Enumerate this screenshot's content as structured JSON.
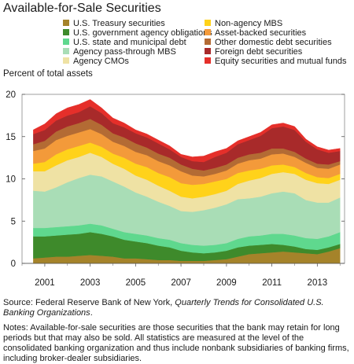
{
  "title": "Available-for-Sale Securities",
  "ylabel": "Percent of total assets",
  "legend_items": [
    {
      "label": "U.S. Treasury securities",
      "color": "#a5832a"
    },
    {
      "label": "U.S. government agency obligations",
      "color": "#3e8a2b"
    },
    {
      "label": "U.S. state and municipal debt",
      "color": "#5fd88e"
    },
    {
      "label": "Agency pass-through MBS",
      "color": "#a9ddb6"
    },
    {
      "label": "Agency CMOs",
      "color": "#efe2a4"
    },
    {
      "label": "Non-agency MBS",
      "color": "#ffd21a"
    },
    {
      "label": "Asset-backed securities",
      "color": "#f39a3a"
    },
    {
      "label": "Other domestic debt securities",
      "color": "#b36b34"
    },
    {
      "label": "Foreign debt securities",
      "color": "#a82a2a"
    },
    {
      "label": "Equity securities and mutual funds",
      "color": "#e52f2a"
    }
  ],
  "source": {
    "prefix": "Source: Federal Reserve Bank of New York, ",
    "italic": "Quarterly Trends for Consolidated U.S. Banking Organizations",
    "suffix": "."
  },
  "notes": "Notes: Available-for-sale securities are those securities that the bank may retain for long periods but that may also be sold. All statistics are measured at the level of the consolidated banking organization and thus include nonbank subsidiaries of banking firms, including broker-dealer subsidiaries.",
  "chart_data": {
    "type": "area",
    "stacked": true,
    "x": [
      2000.5,
      2001.0,
      2001.5,
      2002.0,
      2002.5,
      2003.0,
      2003.5,
      2004.0,
      2004.5,
      2005.0,
      2005.5,
      2006.0,
      2006.5,
      2007.0,
      2007.5,
      2008.0,
      2008.5,
      2009.0,
      2009.5,
      2010.0,
      2010.5,
      2011.0,
      2011.5,
      2012.0,
      2012.5,
      2013.0,
      2013.5,
      2014.0
    ],
    "xticks": [
      "2001",
      "2003",
      "2005",
      "2007",
      "2009",
      "2011",
      "2013"
    ],
    "xtick_values": [
      2001,
      2003,
      2005,
      2007,
      2009,
      2011,
      2013
    ],
    "xlim": [
      2000,
      2014.2
    ],
    "ylim": [
      0,
      20
    ],
    "yticks": [
      0,
      5,
      10,
      15,
      20
    ],
    "series": [
      {
        "name": "U.S. Treasury securities",
        "values": [
          0.6,
          0.7,
          0.8,
          0.8,
          0.9,
          1.0,
          0.9,
          0.8,
          0.6,
          0.6,
          0.5,
          0.4,
          0.4,
          0.3,
          0.3,
          0.3,
          0.4,
          0.5,
          0.8,
          1.1,
          1.2,
          1.3,
          1.4,
          1.3,
          1.2,
          1.1,
          1.4,
          1.8
        ]
      },
      {
        "name": "U.S. government agency obligations",
        "values": [
          2.6,
          2.5,
          2.5,
          2.6,
          2.6,
          2.7,
          2.6,
          2.4,
          2.2,
          2.0,
          1.9,
          1.7,
          1.5,
          1.2,
          1.0,
          0.9,
          0.9,
          1.0,
          1.1,
          1.0,
          1.0,
          1.0,
          0.8,
          0.7,
          0.5,
          0.5,
          0.5,
          0.5
        ]
      },
      {
        "name": "U.S. state and municipal debt",
        "values": [
          1.0,
          1.0,
          1.0,
          1.0,
          1.0,
          1.0,
          1.0,
          0.9,
          0.9,
          0.9,
          0.9,
          0.9,
          0.9,
          0.9,
          0.9,
          0.9,
          0.9,
          0.9,
          1.0,
          1.1,
          1.1,
          1.2,
          1.3,
          1.3,
          1.3,
          1.3,
          1.3,
          1.4
        ]
      },
      {
        "name": "Agency pass-through MBS",
        "values": [
          4.4,
          4.3,
          4.7,
          5.2,
          5.6,
          5.8,
          5.8,
          5.6,
          5.4,
          4.9,
          4.6,
          4.3,
          4.0,
          3.8,
          3.9,
          4.2,
          4.4,
          4.6,
          4.7,
          4.5,
          4.6,
          4.8,
          5.0,
          5.0,
          4.5,
          4.3,
          4.0,
          4.1
        ]
      },
      {
        "name": "Agency CMOs",
        "values": [
          2.3,
          2.4,
          2.6,
          2.6,
          2.5,
          2.6,
          2.3,
          2.1,
          2.1,
          2.0,
          2.0,
          1.9,
          1.8,
          1.7,
          1.6,
          1.6,
          1.6,
          1.6,
          1.8,
          2.1,
          2.2,
          2.3,
          2.3,
          2.3,
          2.4,
          2.3,
          2.2,
          2.1
        ]
      },
      {
        "name": "Non-agency MBS",
        "values": [
          0.9,
          1.1,
          1.3,
          1.3,
          1.3,
          1.2,
          1.2,
          1.2,
          1.3,
          1.4,
          1.5,
          1.5,
          1.6,
          1.6,
          1.6,
          1.5,
          1.5,
          1.4,
          1.3,
          1.2,
          1.1,
          1.0,
          0.9,
          0.8,
          0.8,
          0.7,
          0.7,
          0.7
        ]
      },
      {
        "name": "Asset-backed securities",
        "values": [
          1.5,
          1.6,
          1.7,
          1.6,
          1.6,
          1.6,
          1.5,
          1.4,
          1.4,
          1.4,
          1.4,
          1.4,
          1.4,
          1.4,
          1.1,
          0.9,
          0.9,
          1.0,
          1.1,
          1.2,
          1.2,
          1.3,
          1.3,
          1.2,
          1.2,
          1.1,
          1.1,
          1.1
        ]
      },
      {
        "name": "Other domestic debt securities",
        "values": [
          0.8,
          0.9,
          1.0,
          1.1,
          1.1,
          1.2,
          1.1,
          1.0,
          1.0,
          1.0,
          0.9,
          0.9,
          0.9,
          0.8,
          0.8,
          0.7,
          0.7,
          0.7,
          0.7,
          0.7,
          0.7,
          0.7,
          0.6,
          0.6,
          0.5,
          0.5,
          0.5,
          0.4
        ]
      },
      {
        "name": "Foreign debt securities",
        "values": [
          1.2,
          1.3,
          1.3,
          1.3,
          1.3,
          1.5,
          1.4,
          1.2,
          1.2,
          1.2,
          1.2,
          1.2,
          1.0,
          0.9,
          0.9,
          1.0,
          1.3,
          1.4,
          1.6,
          1.7,
          2.0,
          2.4,
          2.6,
          2.6,
          2.0,
          1.7,
          1.4,
          1.2
        ]
      },
      {
        "name": "Equity securities and mutual funds",
        "values": [
          0.5,
          0.7,
          0.8,
          0.9,
          0.9,
          0.8,
          0.6,
          0.6,
          0.5,
          0.4,
          0.4,
          0.4,
          0.4,
          0.3,
          0.5,
          0.7,
          0.6,
          0.5,
          0.4,
          0.4,
          0.4,
          0.4,
          0.4,
          0.4,
          0.3,
          0.3,
          0.3,
          0.3
        ]
      }
    ]
  }
}
